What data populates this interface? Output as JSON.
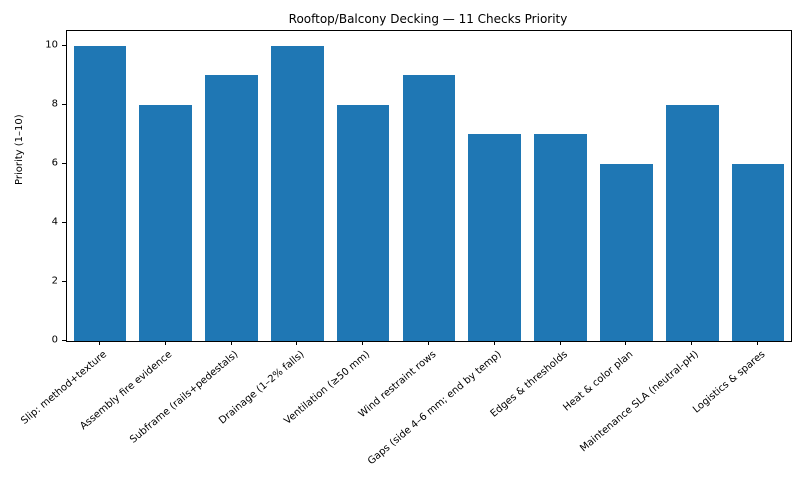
{
  "accent_color": "#1f77b4",
  "chart_data": {
    "type": "bar",
    "title": "Rooftop/Balcony Decking — 11 Checks Priority",
    "xlabel": "",
    "ylabel": "Priority (1–10)",
    "categories": [
      "Slip: method+texture",
      "Assembly fire evidence",
      "Subframe (rails+pedestals)",
      "Drainage (1–2% falls)",
      "Ventilation (≥50 mm)",
      "Wind restraint rows",
      "Gaps (side 4–6 mm; end by temp)",
      "Edges & thresholds",
      "Heat & color plan",
      "Maintenance SLA (neutral-pH)",
      "Logistics & spares"
    ],
    "values": [
      10,
      8,
      9,
      10,
      8,
      9,
      7,
      7,
      6,
      8,
      6
    ],
    "ylim": [
      0,
      10.5
    ],
    "yticks": [
      0,
      2,
      4,
      6,
      8,
      10
    ],
    "bar_color": "#1f77b4",
    "grid": "off",
    "legend": "none"
  }
}
